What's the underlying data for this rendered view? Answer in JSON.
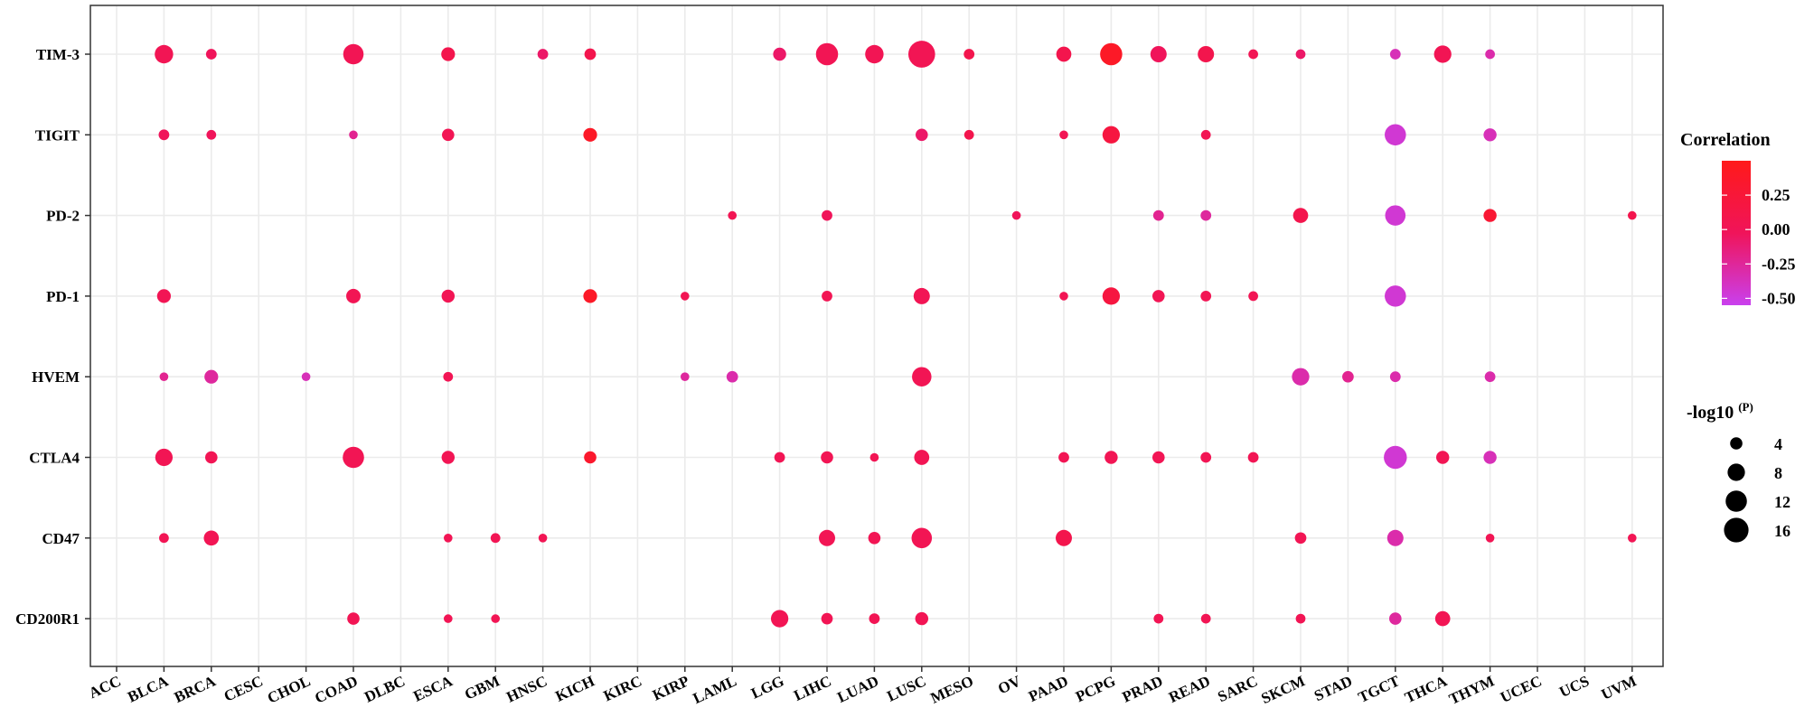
{
  "chart_data": {
    "type": "scatter",
    "subtype": "bubble",
    "title": "",
    "xlabel": "",
    "ylabel": "",
    "grid": true,
    "categories_x": [
      "ACC",
      "BLCA",
      "BRCA",
      "CESC",
      "CHOL",
      "COAD",
      "DLBC",
      "ESCA",
      "GBM",
      "HNSC",
      "KICH",
      "KIRC",
      "KIRP",
      "LAML",
      "LGG",
      "LIHC",
      "LUAD",
      "LUSC",
      "MESO",
      "OV",
      "PAAD",
      "PCPG",
      "PRAD",
      "READ",
      "SARC",
      "SKCM",
      "STAD",
      "TGCT",
      "THCA",
      "THYM",
      "UCEC",
      "UCS",
      "UVM"
    ],
    "categories_y": [
      "TIM-3",
      "TIGIT",
      "PD-2",
      "PD-1",
      "HVEM",
      "CTLA4",
      "CD47",
      "CD200R1"
    ],
    "color_legend": {
      "title": "Correlation",
      "range": [
        -0.55,
        0.5
      ],
      "ticks": [
        0.25,
        0.0,
        -0.25,
        -0.5
      ],
      "tick_labels": [
        "0.25",
        "0.00",
        "-0.25",
        "-0.50"
      ],
      "colors": {
        "high": "#ff1a1a",
        "mid": "#f0145a",
        "low": "#c940ee"
      }
    },
    "size_legend": {
      "title_main": "-log10",
      "title_sup": "(P)",
      "values": [
        4,
        8,
        12,
        16
      ],
      "labels": [
        "4",
        "8",
        "12",
        "16"
      ],
      "legend_position": "right"
    },
    "points": [
      {
        "x": "BLCA",
        "y": "TIM-3",
        "size": 9,
        "corr": 0.05
      },
      {
        "x": "BRCA",
        "y": "TIM-3",
        "size": 3,
        "corr": 0.0
      },
      {
        "x": "COAD",
        "y": "TIM-3",
        "size": 11,
        "corr": 0.05
      },
      {
        "x": "ESCA",
        "y": "TIM-3",
        "size": 5,
        "corr": 0.1
      },
      {
        "x": "HNSC",
        "y": "TIM-3",
        "size": 3,
        "corr": -0.05
      },
      {
        "x": "KICH",
        "y": "TIM-3",
        "size": 3.5,
        "corr": 0.1
      },
      {
        "x": "LGG",
        "y": "TIM-3",
        "size": 4.5,
        "corr": -0.05
      },
      {
        "x": "LIHC",
        "y": "TIM-3",
        "size": 13,
        "corr": 0.05
      },
      {
        "x": "LUAD",
        "y": "TIM-3",
        "size": 9,
        "corr": 0.05
      },
      {
        "x": "LUSC",
        "y": "TIM-3",
        "size": 19,
        "corr": 0.05
      },
      {
        "x": "MESO",
        "y": "TIM-3",
        "size": 3,
        "corr": 0.1
      },
      {
        "x": "PAAD",
        "y": "TIM-3",
        "size": 6,
        "corr": 0.1
      },
      {
        "x": "PCPG",
        "y": "TIM-3",
        "size": 13,
        "corr": 0.4
      },
      {
        "x": "PRAD",
        "y": "TIM-3",
        "size": 7,
        "corr": 0.0
      },
      {
        "x": "READ",
        "y": "TIM-3",
        "size": 7,
        "corr": 0.1
      },
      {
        "x": "SARC",
        "y": "TIM-3",
        "size": 2.5,
        "corr": 0.05
      },
      {
        "x": "SKCM",
        "y": "TIM-3",
        "size": 2.5,
        "corr": -0.05
      },
      {
        "x": "TGCT",
        "y": "TIM-3",
        "size": 3,
        "corr": -0.35
      },
      {
        "x": "THCA",
        "y": "TIM-3",
        "size": 8,
        "corr": 0.05
      },
      {
        "x": "THYM",
        "y": "TIM-3",
        "size": 2.5,
        "corr": -0.3
      },
      {
        "x": "BLCA",
        "y": "TIGIT",
        "size": 3,
        "corr": 0.0
      },
      {
        "x": "BRCA",
        "y": "TIGIT",
        "size": 2.5,
        "corr": 0.0
      },
      {
        "x": "COAD",
        "y": "TIGIT",
        "size": 2,
        "corr": -0.2
      },
      {
        "x": "ESCA",
        "y": "TIGIT",
        "size": 4,
        "corr": 0.05
      },
      {
        "x": "KICH",
        "y": "TIGIT",
        "size": 5,
        "corr": 0.4
      },
      {
        "x": "LUSC",
        "y": "TIGIT",
        "size": 4,
        "corr": -0.05
      },
      {
        "x": "MESO",
        "y": "TIGIT",
        "size": 2.5,
        "corr": 0.1
      },
      {
        "x": "PAAD",
        "y": "TIGIT",
        "size": 2,
        "corr": 0.05
      },
      {
        "x": "PCPG",
        "y": "TIGIT",
        "size": 8,
        "corr": 0.2
      },
      {
        "x": "READ",
        "y": "TIGIT",
        "size": 2.5,
        "corr": 0.05
      },
      {
        "x": "TGCT",
        "y": "TIGIT",
        "size": 12,
        "corr": -0.45
      },
      {
        "x": "THYM",
        "y": "TIGIT",
        "size": 4.5,
        "corr": -0.35
      },
      {
        "x": "LAML",
        "y": "PD-2",
        "size": 2,
        "corr": 0.05
      },
      {
        "x": "LIHC",
        "y": "PD-2",
        "size": 3,
        "corr": 0.0
      },
      {
        "x": "OV",
        "y": "PD-2",
        "size": 2,
        "corr": 0.0
      },
      {
        "x": "PRAD",
        "y": "PD-2",
        "size": 3,
        "corr": -0.2
      },
      {
        "x": "READ",
        "y": "PD-2",
        "size": 3,
        "corr": -0.25
      },
      {
        "x": "SKCM",
        "y": "PD-2",
        "size": 6,
        "corr": 0.1
      },
      {
        "x": "TGCT",
        "y": "PD-2",
        "size": 11,
        "corr": -0.45
      },
      {
        "x": "THYM",
        "y": "PD-2",
        "size": 4.5,
        "corr": 0.3
      },
      {
        "x": "UVM",
        "y": "PD-2",
        "size": 2,
        "corr": 0.1
      },
      {
        "x": "BLCA",
        "y": "PD-1",
        "size": 5,
        "corr": 0.05
      },
      {
        "x": "COAD",
        "y": "PD-1",
        "size": 5.5,
        "corr": 0.05
      },
      {
        "x": "ESCA",
        "y": "PD-1",
        "size": 4.5,
        "corr": 0.05
      },
      {
        "x": "KICH",
        "y": "PD-1",
        "size": 5,
        "corr": 0.4
      },
      {
        "x": "KIRP",
        "y": "PD-1",
        "size": 2,
        "corr": 0.05
      },
      {
        "x": "LIHC",
        "y": "PD-1",
        "size": 3,
        "corr": 0.05
      },
      {
        "x": "LUSC",
        "y": "PD-1",
        "size": 7,
        "corr": 0.05
      },
      {
        "x": "PAAD",
        "y": "PD-1",
        "size": 2,
        "corr": 0.05
      },
      {
        "x": "PCPG",
        "y": "PD-1",
        "size": 8,
        "corr": 0.2
      },
      {
        "x": "PRAD",
        "y": "PD-1",
        "size": 4,
        "corr": 0.05
      },
      {
        "x": "READ",
        "y": "PD-1",
        "size": 3,
        "corr": 0.05
      },
      {
        "x": "SARC",
        "y": "PD-1",
        "size": 2.5,
        "corr": 0.05
      },
      {
        "x": "TGCT",
        "y": "PD-1",
        "size": 12,
        "corr": -0.45
      },
      {
        "x": "BLCA",
        "y": "HVEM",
        "size": 2,
        "corr": -0.2
      },
      {
        "x": "BRCA",
        "y": "HVEM",
        "size": 5,
        "corr": -0.25
      },
      {
        "x": "CHOL",
        "y": "HVEM",
        "size": 2,
        "corr": -0.35
      },
      {
        "x": "ESCA",
        "y": "HVEM",
        "size": 2.5,
        "corr": 0.05
      },
      {
        "x": "KIRP",
        "y": "HVEM",
        "size": 2,
        "corr": -0.25
      },
      {
        "x": "LAML",
        "y": "HVEM",
        "size": 3.5,
        "corr": -0.3
      },
      {
        "x": "LUSC",
        "y": "HVEM",
        "size": 10,
        "corr": 0.05
      },
      {
        "x": "SKCM",
        "y": "HVEM",
        "size": 8,
        "corr": -0.3
      },
      {
        "x": "STAD",
        "y": "HVEM",
        "size": 3.5,
        "corr": -0.2
      },
      {
        "x": "TGCT",
        "y": "HVEM",
        "size": 3,
        "corr": -0.3
      },
      {
        "x": "THYM",
        "y": "HVEM",
        "size": 3,
        "corr": -0.3
      },
      {
        "x": "BLCA",
        "y": "CTLA4",
        "size": 8,
        "corr": 0.05
      },
      {
        "x": "BRCA",
        "y": "CTLA4",
        "size": 4,
        "corr": 0.05
      },
      {
        "x": "COAD",
        "y": "CTLA4",
        "size": 12,
        "corr": 0.05
      },
      {
        "x": "ESCA",
        "y": "CTLA4",
        "size": 4.5,
        "corr": 0.05
      },
      {
        "x": "KICH",
        "y": "CTLA4",
        "size": 4,
        "corr": 0.35
      },
      {
        "x": "LGG",
        "y": "CTLA4",
        "size": 3,
        "corr": 0.05
      },
      {
        "x": "LIHC",
        "y": "CTLA4",
        "size": 4,
        "corr": 0.05
      },
      {
        "x": "LUAD",
        "y": "CTLA4",
        "size": 2,
        "corr": 0.05
      },
      {
        "x": "LUSC",
        "y": "CTLA4",
        "size": 6,
        "corr": 0.05
      },
      {
        "x": "PAAD",
        "y": "CTLA4",
        "size": 3,
        "corr": 0.05
      },
      {
        "x": "PCPG",
        "y": "CTLA4",
        "size": 4.5,
        "corr": 0.05
      },
      {
        "x": "PRAD",
        "y": "CTLA4",
        "size": 4,
        "corr": 0.05
      },
      {
        "x": "READ",
        "y": "CTLA4",
        "size": 3,
        "corr": 0.05
      },
      {
        "x": "SARC",
        "y": "CTLA4",
        "size": 3,
        "corr": 0.05
      },
      {
        "x": "TGCT",
        "y": "CTLA4",
        "size": 14,
        "corr": -0.45
      },
      {
        "x": "THCA",
        "y": "CTLA4",
        "size": 4.5,
        "corr": 0.05
      },
      {
        "x": "THYM",
        "y": "CTLA4",
        "size": 4.5,
        "corr": -0.35
      },
      {
        "x": "BLCA",
        "y": "CD47",
        "size": 2.5,
        "corr": 0.05
      },
      {
        "x": "BRCA",
        "y": "CD47",
        "size": 6,
        "corr": 0.05
      },
      {
        "x": "ESCA",
        "y": "CD47",
        "size": 2,
        "corr": 0.05
      },
      {
        "x": "GBM",
        "y": "CD47",
        "size": 2.5,
        "corr": 0.05
      },
      {
        "x": "HNSC",
        "y": "CD47",
        "size": 2,
        "corr": 0.05
      },
      {
        "x": "LIHC",
        "y": "CD47",
        "size": 7,
        "corr": 0.05
      },
      {
        "x": "LUAD",
        "y": "CD47",
        "size": 4,
        "corr": 0.05
      },
      {
        "x": "LUSC",
        "y": "CD47",
        "size": 11,
        "corr": 0.05
      },
      {
        "x": "PAAD",
        "y": "CD47",
        "size": 7,
        "corr": 0.1
      },
      {
        "x": "SKCM",
        "y": "CD47",
        "size": 3.5,
        "corr": 0.05
      },
      {
        "x": "TGCT",
        "y": "CD47",
        "size": 7,
        "corr": -0.3
      },
      {
        "x": "THYM",
        "y": "CD47",
        "size": 2,
        "corr": 0.05
      },
      {
        "x": "UVM",
        "y": "CD47",
        "size": 2,
        "corr": 0.05
      },
      {
        "x": "COAD",
        "y": "CD200R1",
        "size": 4,
        "corr": 0.05
      },
      {
        "x": "ESCA",
        "y": "CD200R1",
        "size": 2,
        "corr": 0.05
      },
      {
        "x": "GBM",
        "y": "CD200R1",
        "size": 2,
        "corr": 0.05
      },
      {
        "x": "LGG",
        "y": "CD200R1",
        "size": 8,
        "corr": 0.05
      },
      {
        "x": "LIHC",
        "y": "CD200R1",
        "size": 3.5,
        "corr": 0.05
      },
      {
        "x": "LUAD",
        "y": "CD200R1",
        "size": 3,
        "corr": 0.05
      },
      {
        "x": "LUSC",
        "y": "CD200R1",
        "size": 4.5,
        "corr": 0.05
      },
      {
        "x": "PRAD",
        "y": "CD200R1",
        "size": 2.5,
        "corr": 0.05
      },
      {
        "x": "READ",
        "y": "CD200R1",
        "size": 2.5,
        "corr": 0.05
      },
      {
        "x": "SKCM",
        "y": "CD200R1",
        "size": 2.5,
        "corr": 0.05
      },
      {
        "x": "TGCT",
        "y": "CD200R1",
        "size": 4,
        "corr": -0.25
      },
      {
        "x": "THCA",
        "y": "CD200R1",
        "size": 6,
        "corr": 0.05
      }
    ]
  }
}
